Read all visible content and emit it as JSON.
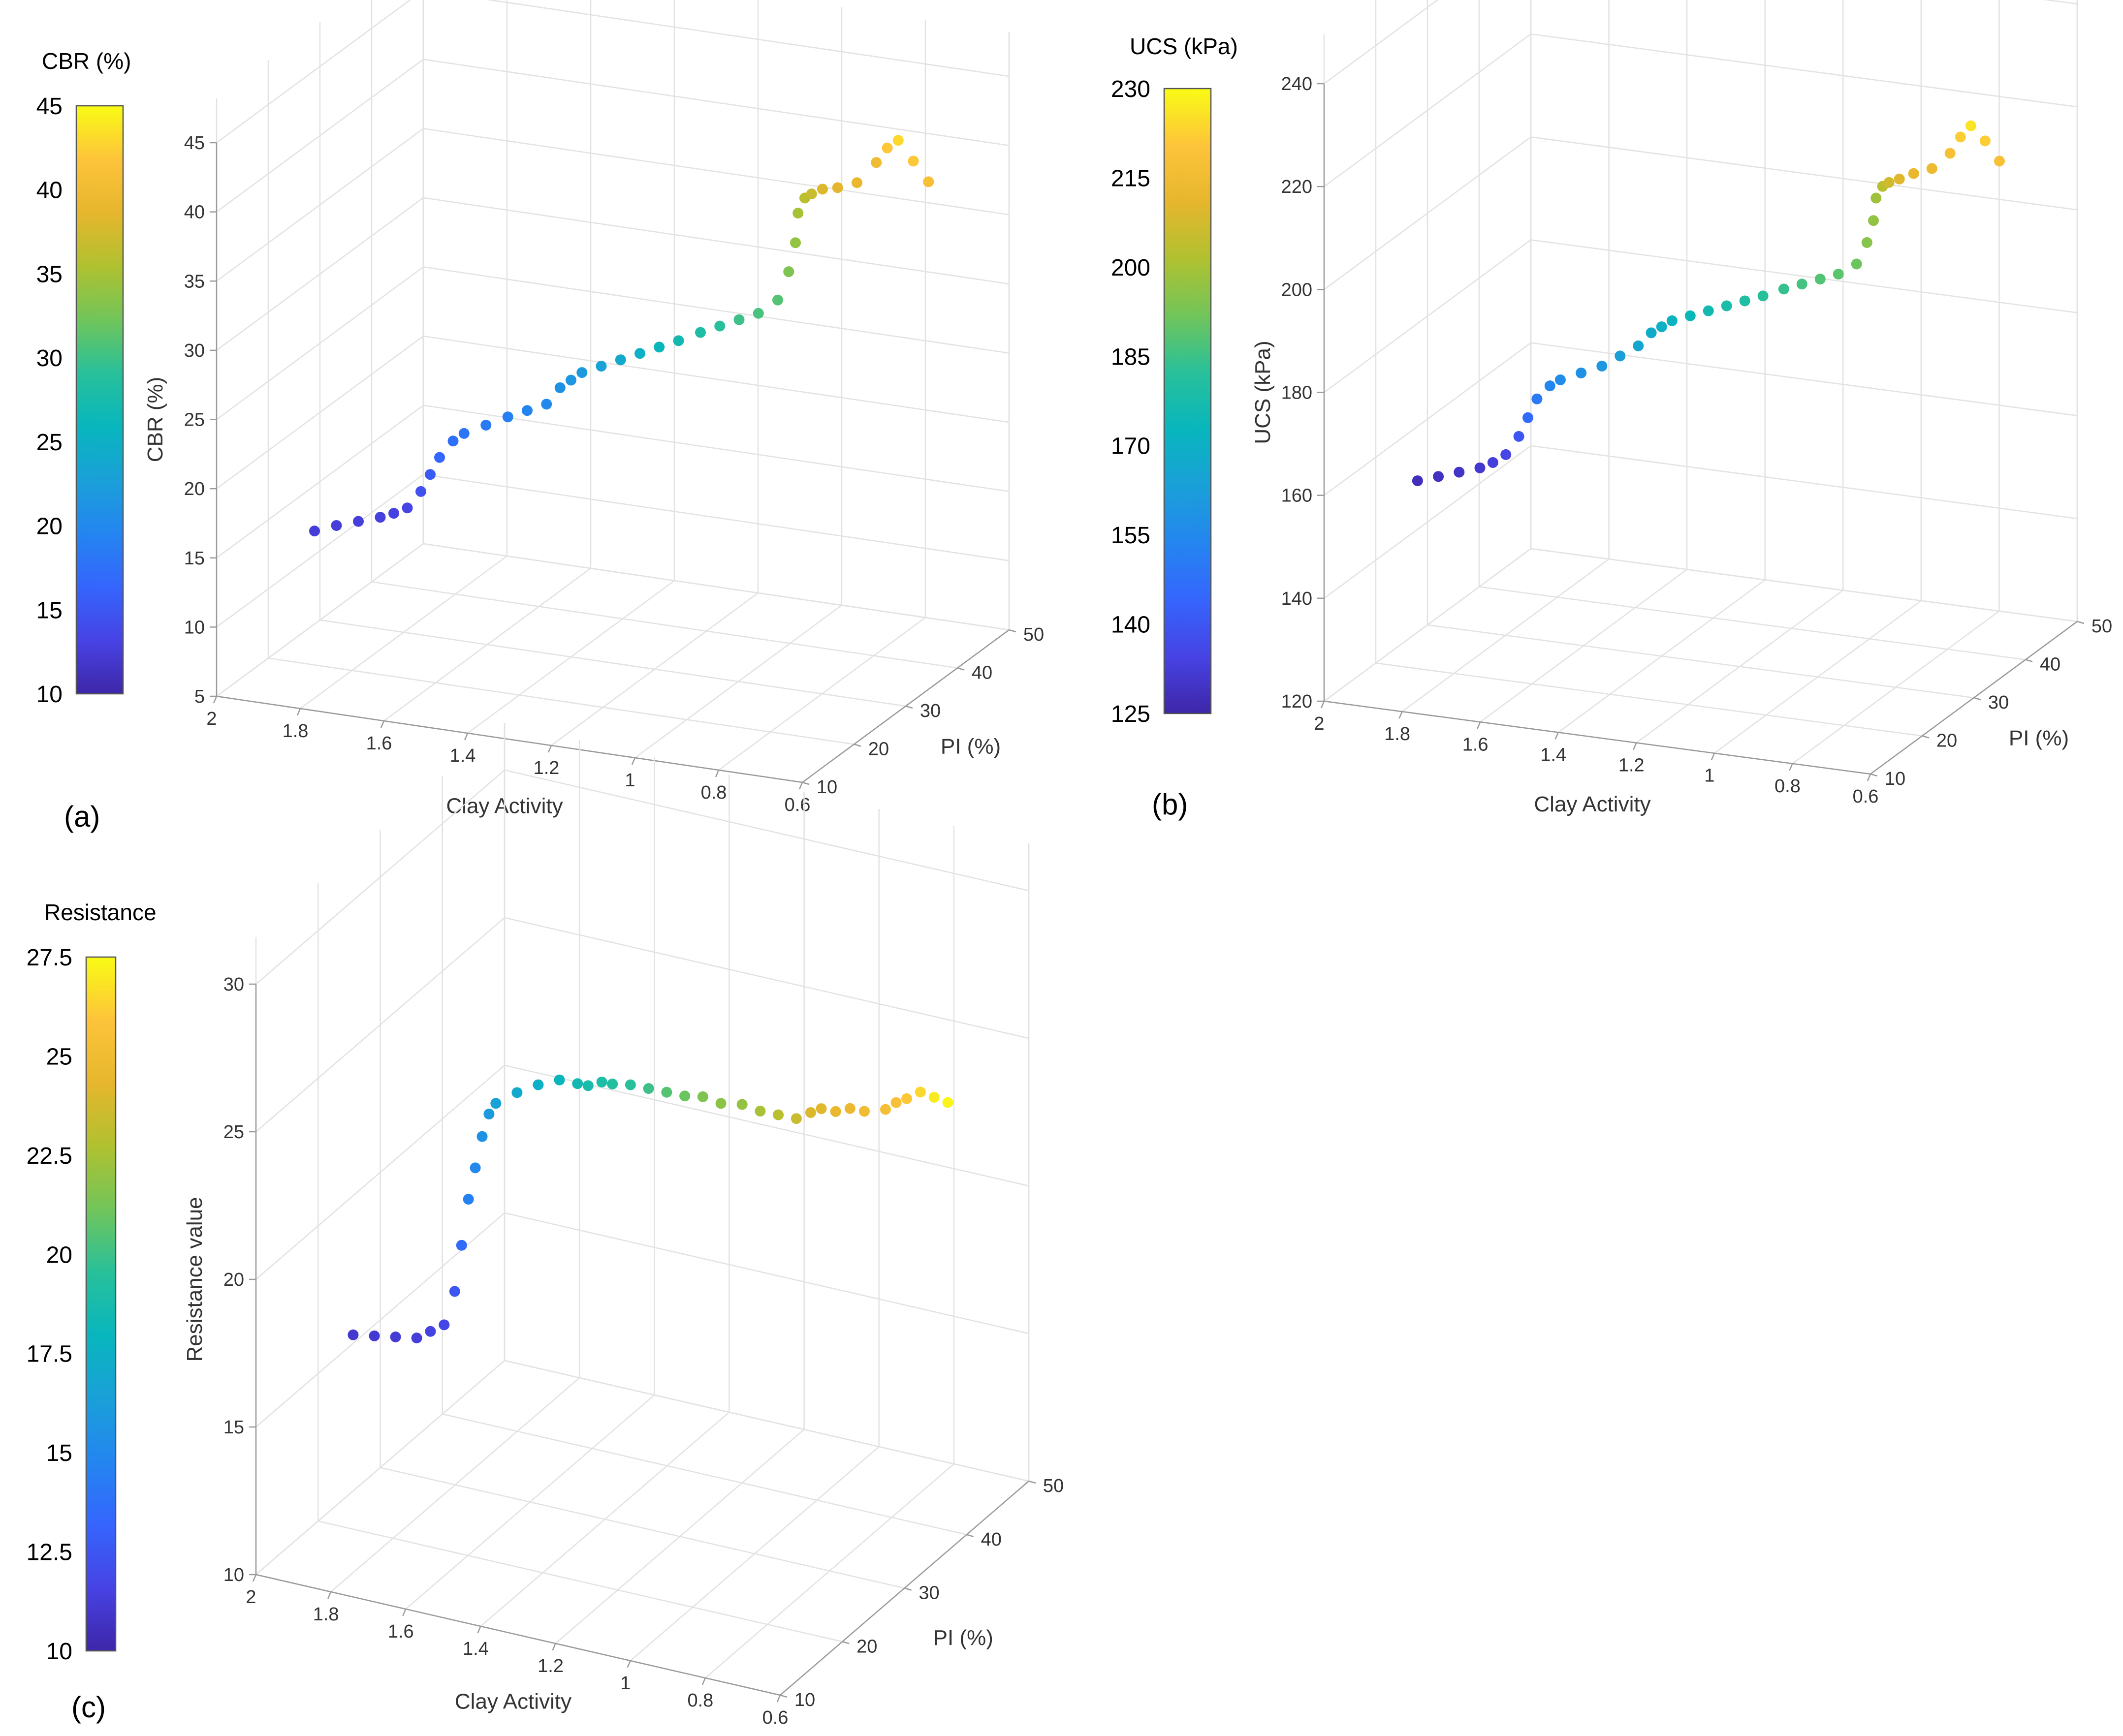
{
  "figure": {
    "panels": [
      {
        "id": "a",
        "panel_label": "(a)",
        "colorbar": {
          "title": "CBR (%)",
          "ticks": [
            "10",
            "15",
            "20",
            "25",
            "30",
            "35",
            "40",
            "45"
          ],
          "range": [
            10,
            45
          ]
        }
      },
      {
        "id": "b",
        "panel_label": "(b)",
        "colorbar": {
          "title": "UCS (kPa)",
          "ticks": [
            "125",
            "140",
            "155",
            "170",
            "185",
            "200",
            "215",
            "230"
          ],
          "range": [
            125,
            230
          ]
        }
      },
      {
        "id": "c",
        "panel_label": "(c)",
        "colorbar": {
          "title": "Resistance",
          "ticks": [
            "10",
            "12.5",
            "15",
            "17.5",
            "20",
            "22.5",
            "25",
            "27.5"
          ],
          "range": [
            10,
            27.5
          ]
        }
      }
    ]
  },
  "colormap": [
    "#3e26a8",
    "#4743e4",
    "#3565fd",
    "#2485f0",
    "#1aa0d8",
    "#08b6bd",
    "#28c09a",
    "#71c55a",
    "#b0c130",
    "#e6b62d",
    "#fdc43a",
    "#f9fb15"
  ],
  "chart_data": [
    {
      "type": "scatter3d",
      "panel": "a",
      "xlabel": "Clay Activity",
      "ylabel": "PI (%)",
      "zlabel": "CBR (%)",
      "xlim": [
        2,
        0.6
      ],
      "ylim": [
        10,
        50
      ],
      "zlim": [
        5,
        45
      ],
      "xticks": [
        "2",
        "1.8",
        "1.6",
        "1.4",
        "1.2",
        "1",
        "0.8",
        "0.6"
      ],
      "yticks": [
        "10",
        "20",
        "30",
        "40",
        "50"
      ],
      "zticks": [
        "5",
        "10",
        "15",
        "20",
        "25",
        "30",
        "35",
        "40",
        "45"
      ],
      "x": [
        1.84,
        1.8,
        1.76,
        1.72,
        1.7,
        1.68,
        1.66,
        1.65,
        1.64,
        1.62,
        1.6,
        1.56,
        1.52,
        1.48,
        1.44,
        1.42,
        1.4,
        1.38,
        1.34,
        1.3,
        1.26,
        1.22,
        1.18,
        1.14,
        1.1,
        1.06,
        1.02,
        0.98,
        0.96,
        0.95,
        0.95,
        0.94,
        0.93,
        0.91,
        0.88,
        0.84,
        0.8,
        0.78,
        0.76,
        0.73,
        0.7
      ],
      "y": [
        16,
        17,
        18,
        19,
        20,
        21,
        22,
        23,
        24,
        25,
        25.5,
        26.5,
        27.5,
        28,
        28.5,
        29.5,
        30,
        30.5,
        31,
        31.5,
        32,
        32.5,
        33,
        34,
        34.5,
        35,
        35.5,
        36,
        36.5,
        37,
        37.5,
        38,
        38.5,
        39,
        39.5,
        40,
        40.5,
        41,
        41.5,
        42,
        42.5
      ],
      "z": [
        16,
        16.3,
        16.5,
        16.7,
        16.8,
        17,
        18,
        19,
        20,
        21,
        21.5,
        22,
        22.5,
        23,
        23.5,
        24.5,
        25,
        25.5,
        26,
        26.5,
        27,
        27.5,
        28,
        28.5,
        29,
        29.5,
        30,
        31,
        33,
        35,
        37,
        38,
        38.2,
        38.5,
        38.6,
        39,
        40.5,
        41.5,
        42,
        40.5,
        39
      ],
      "c": [
        12.5,
        12.6,
        12.7,
        12.8,
        13,
        13.2,
        14.5,
        15.5,
        16.5,
        17.5,
        18,
        18.5,
        19,
        19.5,
        20,
        21,
        21.5,
        22,
        23,
        24,
        25,
        26,
        27,
        28,
        29,
        30,
        30.5,
        31,
        33,
        34,
        35,
        36,
        37,
        38,
        38.5,
        39,
        40,
        42,
        43,
        42,
        41
      ]
    },
    {
      "type": "scatter3d",
      "panel": "b",
      "xlabel": "Clay Activity",
      "ylabel": "PI (%)",
      "zlabel": "UCS (kPa)",
      "xlim": [
        2,
        0.6
      ],
      "ylim": [
        10,
        50
      ],
      "zlim": [
        120,
        240
      ],
      "xticks": [
        "2",
        "1.8",
        "1.6",
        "1.4",
        "1.2",
        "1",
        "0.8",
        "0.6"
      ],
      "yticks": [
        "10",
        "20",
        "30",
        "40",
        "50"
      ],
      "zticks": [
        "120",
        "140",
        "160",
        "180",
        "200",
        "220",
        "240"
      ],
      "x": [
        1.84,
        1.8,
        1.76,
        1.72,
        1.7,
        1.68,
        1.66,
        1.65,
        1.64,
        1.62,
        1.6,
        1.56,
        1.52,
        1.48,
        1.44,
        1.42,
        1.4,
        1.38,
        1.34,
        1.3,
        1.26,
        1.22,
        1.18,
        1.14,
        1.1,
        1.06,
        1.02,
        0.98,
        0.96,
        0.95,
        0.95,
        0.94,
        0.93,
        0.91,
        0.88,
        0.84,
        0.8,
        0.78,
        0.76,
        0.73,
        0.7
      ],
      "y": [
        16,
        17,
        18,
        19,
        20,
        21,
        22,
        23,
        24,
        25,
        25.5,
        26.5,
        27.5,
        28,
        28.5,
        29.5,
        30,
        30.5,
        31,
        31.5,
        32,
        32.5,
        33,
        34,
        34.5,
        35,
        35.5,
        36,
        36.5,
        37,
        37.5,
        38,
        38.5,
        39,
        39.5,
        40,
        40.5,
        41,
        41.5,
        42,
        42.5
      ],
      "z": [
        160,
        160.5,
        161,
        161.5,
        162,
        163,
        166,
        169,
        172,
        174,
        175,
        176,
        177,
        179,
        181,
        183,
        184,
        185,
        186,
        187,
        188,
        189,
        190,
        191,
        192,
        193,
        194,
        196,
        200,
        204,
        208,
        210,
        210.5,
        211,
        212,
        213,
        216,
        219,
        221,
        218,
        214
      ],
      "c": [
        128,
        129,
        130,
        131,
        133,
        135,
        140,
        146,
        150,
        154,
        156,
        158,
        160,
        163,
        166,
        168,
        170,
        172,
        174,
        176,
        178,
        180,
        182,
        184,
        186,
        188,
        189,
        191,
        195,
        197,
        199,
        203,
        207,
        210,
        212,
        214,
        218,
        222,
        226,
        222,
        218
      ]
    },
    {
      "type": "scatter3d",
      "panel": "c",
      "xlabel": "Clay Activity",
      "ylabel": "PI (%)",
      "zlabel": "Resistance value",
      "xlim": [
        2,
        0.6
      ],
      "ylim": [
        10,
        50
      ],
      "zlim": [
        10,
        30
      ],
      "xticks": [
        "2",
        "1.8",
        "1.6",
        "1.4",
        "1.2",
        "1",
        "0.8",
        "0.6"
      ],
      "yticks": [
        "10",
        "20",
        "30",
        "40",
        "50"
      ],
      "zticks": [
        "10",
        "15",
        "20",
        "25",
        "30"
      ],
      "x": [
        1.84,
        1.8,
        1.76,
        1.72,
        1.7,
        1.68,
        1.66,
        1.65,
        1.64,
        1.63,
        1.62,
        1.61,
        1.6,
        1.56,
        1.52,
        1.48,
        1.44,
        1.42,
        1.4,
        1.38,
        1.34,
        1.3,
        1.26,
        1.22,
        1.18,
        1.14,
        1.1,
        1.06,
        1.02,
        0.98,
        0.95,
        0.93,
        0.9,
        0.87,
        0.84,
        0.8,
        0.78,
        0.76,
        0.74,
        0.72,
        0.7
      ],
      "y": [
        16,
        17,
        18,
        19,
        20,
        21,
        21.5,
        22,
        22.5,
        23,
        23.5,
        24,
        24.5,
        25.5,
        26.5,
        27.5,
        28,
        28.5,
        29.5,
        30,
        30.5,
        31,
        31.5,
        32,
        32.5,
        33,
        34,
        34.5,
        35,
        35.5,
        36,
        36.5,
        37,
        37.5,
        38,
        39,
        39.5,
        40,
        41,
        42,
        43
      ],
      "z": [
        17.5,
        17.4,
        17.3,
        17.2,
        17.3,
        17.4,
        18.5,
        20,
        21.5,
        22.5,
        23.5,
        24.2,
        24.5,
        24.8,
        25,
        25.1,
        25,
        24.9,
        24.9,
        24.8,
        24.8,
        24.7,
        24.6,
        24.5,
        24.5,
        24.3,
        24.2,
        24,
        23.9,
        23.8,
        24,
        24.1,
        24,
        24.1,
        24,
        24,
        24.2,
        24.3,
        24.4,
        24.1,
        23.8
      ],
      "c": [
        11,
        11.1,
        11.2,
        11.3,
        11.5,
        11.7,
        12.5,
        13.5,
        14.5,
        15,
        15.5,
        16,
        16.5,
        17,
        17.5,
        18,
        18.5,
        18.8,
        19,
        19.2,
        19.5,
        20,
        20.5,
        21,
        21.5,
        21.8,
        22,
        22.5,
        23,
        23.5,
        24,
        24.2,
        24.5,
        24.7,
        25,
        25.3,
        25.5,
        26,
        26.5,
        27,
        27.3
      ]
    }
  ]
}
